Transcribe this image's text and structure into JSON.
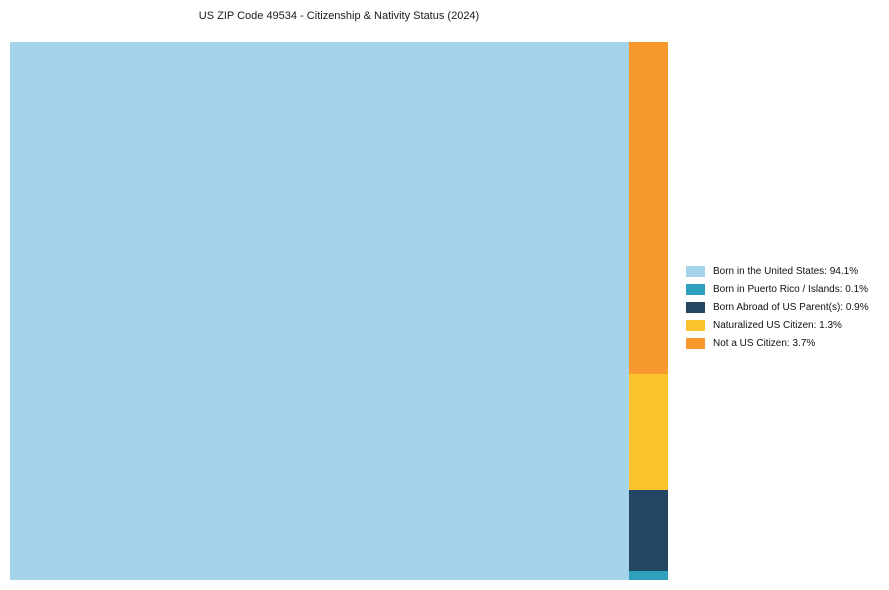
{
  "title": "US ZIP Code 49534 - Citizenship & Nativity Status (2024)",
  "chart_data": {
    "type": "treemap",
    "title": "US ZIP Code 49534 - Citizenship & Nativity Status (2024)",
    "categories": [
      "Born in the United States",
      "Born in Puerto Rico / Islands",
      "Born Abroad of US Parent(s)",
      "Naturalized US Citizen",
      "Not a US Citizen"
    ],
    "values": [
      94.1,
      0.1,
      0.9,
      1.3,
      3.7
    ],
    "colors": [
      "#A5D3EA",
      "#2FA1BD",
      "#234762",
      "#FCC32F",
      "#F8992D"
    ],
    "legend_labels": [
      "Born in the United States: 94.1%",
      "Born in Puerto Rico / Islands: 0.1%",
      "Born Abroad of US Parent(s): 0.9%",
      "Naturalized US Citizen: 1.3%",
      "Not a US Citizen: 3.7%"
    ],
    "legend_position": "right",
    "layout": {
      "main_tile_index": 0,
      "side_column_top_to_bottom": [
        4,
        3,
        2,
        1
      ],
      "grid": false
    }
  }
}
